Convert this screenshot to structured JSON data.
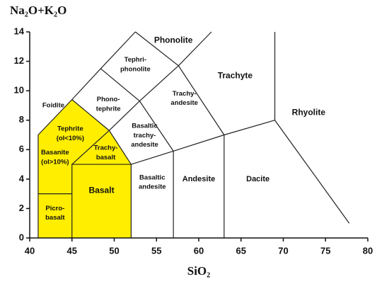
{
  "chart_data": {
    "type": "tas",
    "y_label": "Na₂O+K₂O",
    "x_label": "SiO₂",
    "xlim": [
      40,
      80
    ],
    "ylim": [
      0,
      14
    ],
    "xticks": [
      40,
      45,
      50,
      55,
      60,
      65,
      70,
      75,
      80
    ],
    "yticks": [
      0,
      2,
      4,
      6,
      8,
      10,
      12,
      14
    ],
    "highlight": {
      "color": "#ffee00",
      "x": [
        41,
        41,
        45,
        49.4,
        52,
        52
      ],
      "y": [
        0,
        7,
        9.4,
        7.3,
        5,
        0
      ]
    },
    "boundaries": [
      {
        "x": [
          41,
          41,
          45,
          48.4,
          52.5
        ],
        "y": [
          0,
          7,
          9.4,
          11.5,
          14
        ]
      },
      {
        "x": [
          41,
          45
        ],
        "y": [
          3,
          3
        ]
      },
      {
        "x": [
          45,
          45,
          52,
          52
        ],
        "y": [
          0,
          5,
          5,
          0
        ]
      },
      {
        "x": [
          52,
          57,
          63,
          69,
          77.8
        ],
        "y": [
          5,
          5.9,
          7,
          8,
          1
        ]
      },
      {
        "x": [
          57,
          57
        ],
        "y": [
          0,
          5.9
        ]
      },
      {
        "x": [
          63,
          63
        ],
        "y": [
          0,
          7
        ]
      },
      {
        "x": [
          69,
          69
        ],
        "y": [
          8,
          14
        ]
      },
      {
        "x": [
          45,
          49.4,
          53,
          57.6,
          61.5
        ],
        "y": [
          9.4,
          7.3,
          9.3,
          11.7,
          14
        ]
      },
      {
        "x": [
          45,
          49.4
        ],
        "y": [
          5,
          7.3
        ]
      },
      {
        "x": [
          49.4,
          52
        ],
        "y": [
          7.3,
          5
        ]
      },
      {
        "x": [
          48.4,
          53,
          57
        ],
        "y": [
          11.5,
          9.3,
          5.9
        ]
      },
      {
        "x": [
          52.5,
          57.6,
          63
        ],
        "y": [
          14,
          11.7,
          7
        ]
      }
    ],
    "fields": [
      [
        "Phonolite"
      ],
      [
        "Tephri-",
        "phonolite"
      ],
      [
        "Trachyte"
      ],
      [
        "Foidite"
      ],
      [
        "Phono-",
        "tephrite"
      ],
      [
        "Trachy-",
        "andesite"
      ],
      [
        "Rhyolite"
      ],
      [
        "Tephrite",
        "(ol<10%)"
      ],
      [
        "Basaltic",
        "trachy-",
        "andesite"
      ],
      [
        "Basanite",
        "(ol>10%)"
      ],
      [
        "Trachy-",
        "basalt"
      ],
      [
        "Basaltic",
        "andesite"
      ],
      [
        "Andesite"
      ],
      [
        "Dacite"
      ],
      [
        "Basalt"
      ],
      [
        "Picro-",
        "basalt"
      ]
    ]
  }
}
